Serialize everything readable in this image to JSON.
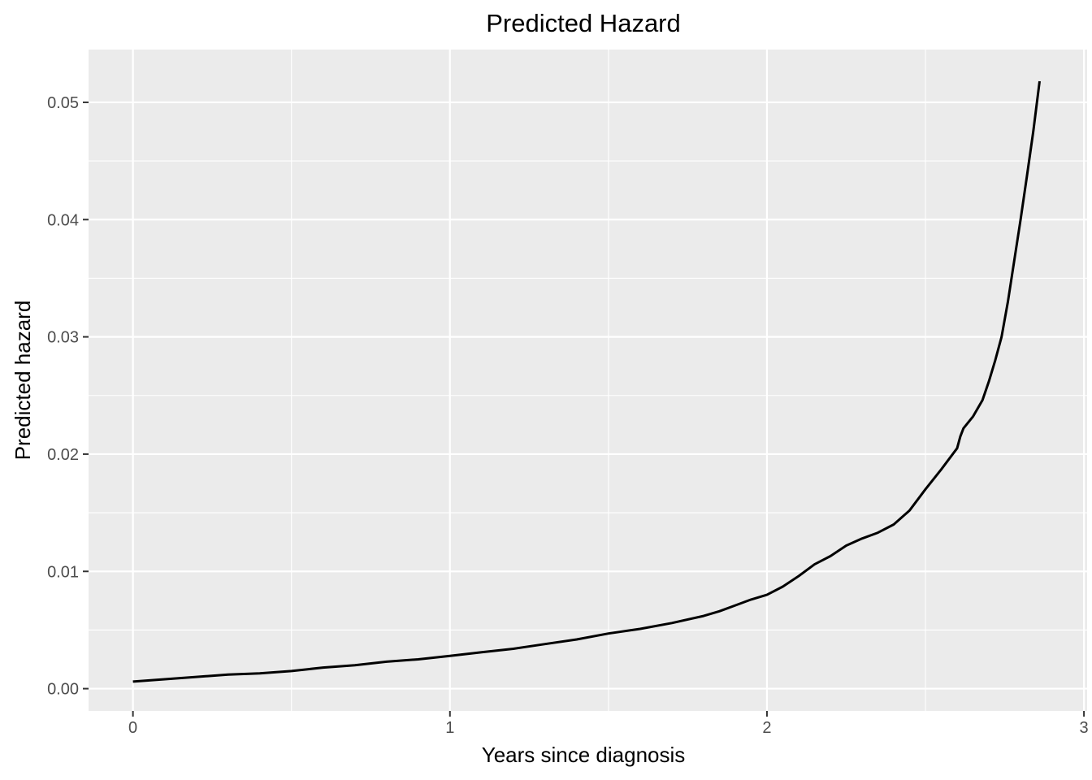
{
  "chart_data": {
    "type": "line",
    "title": "Predicted Hazard",
    "xlabel": "Years since diagnosis",
    "ylabel": "Predicted hazard",
    "xlim": [
      -0.14,
      3.01
    ],
    "ylim": [
      -0.0019,
      0.0545
    ],
    "x_ticks": [
      0,
      1,
      2,
      3
    ],
    "x_tick_labels": [
      "0",
      "1",
      "2",
      "3"
    ],
    "y_ticks": [
      0.0,
      0.01,
      0.02,
      0.03,
      0.04,
      0.05
    ],
    "y_tick_labels": [
      "0.00",
      "0.01",
      "0.02",
      "0.03",
      "0.04",
      "0.05"
    ],
    "grid": true,
    "legend": "none",
    "line_color": "#000000",
    "panel_color": "#ebebeb",
    "series": [
      {
        "x": [
          0.0,
          0.1,
          0.2,
          0.3,
          0.4,
          0.5,
          0.6,
          0.7,
          0.8,
          0.9,
          1.0,
          1.1,
          1.2,
          1.3,
          1.4,
          1.5,
          1.6,
          1.7,
          1.8,
          1.85,
          1.9,
          1.95,
          2.0,
          2.05,
          2.1,
          2.15,
          2.2,
          2.25,
          2.3,
          2.35,
          2.4,
          2.45,
          2.5,
          2.55,
          2.6,
          2.61,
          2.62,
          2.65,
          2.68,
          2.7,
          2.72,
          2.74,
          2.76,
          2.78,
          2.8,
          2.82,
          2.84,
          2.86
        ],
        "y": [
          0.0006,
          0.0008,
          0.001,
          0.0012,
          0.0013,
          0.0015,
          0.0018,
          0.002,
          0.0023,
          0.0025,
          0.0028,
          0.0031,
          0.0034,
          0.0038,
          0.0042,
          0.0047,
          0.0051,
          0.0056,
          0.0062,
          0.0066,
          0.0071,
          0.0076,
          0.008,
          0.0087,
          0.0096,
          0.0106,
          0.0113,
          0.0122,
          0.0128,
          0.0133,
          0.014,
          0.0152,
          0.017,
          0.0187,
          0.0205,
          0.0215,
          0.0222,
          0.0232,
          0.0246,
          0.0262,
          0.028,
          0.03,
          0.033,
          0.0365,
          0.04,
          0.0437,
          0.0475,
          0.0518
        ]
      }
    ]
  }
}
